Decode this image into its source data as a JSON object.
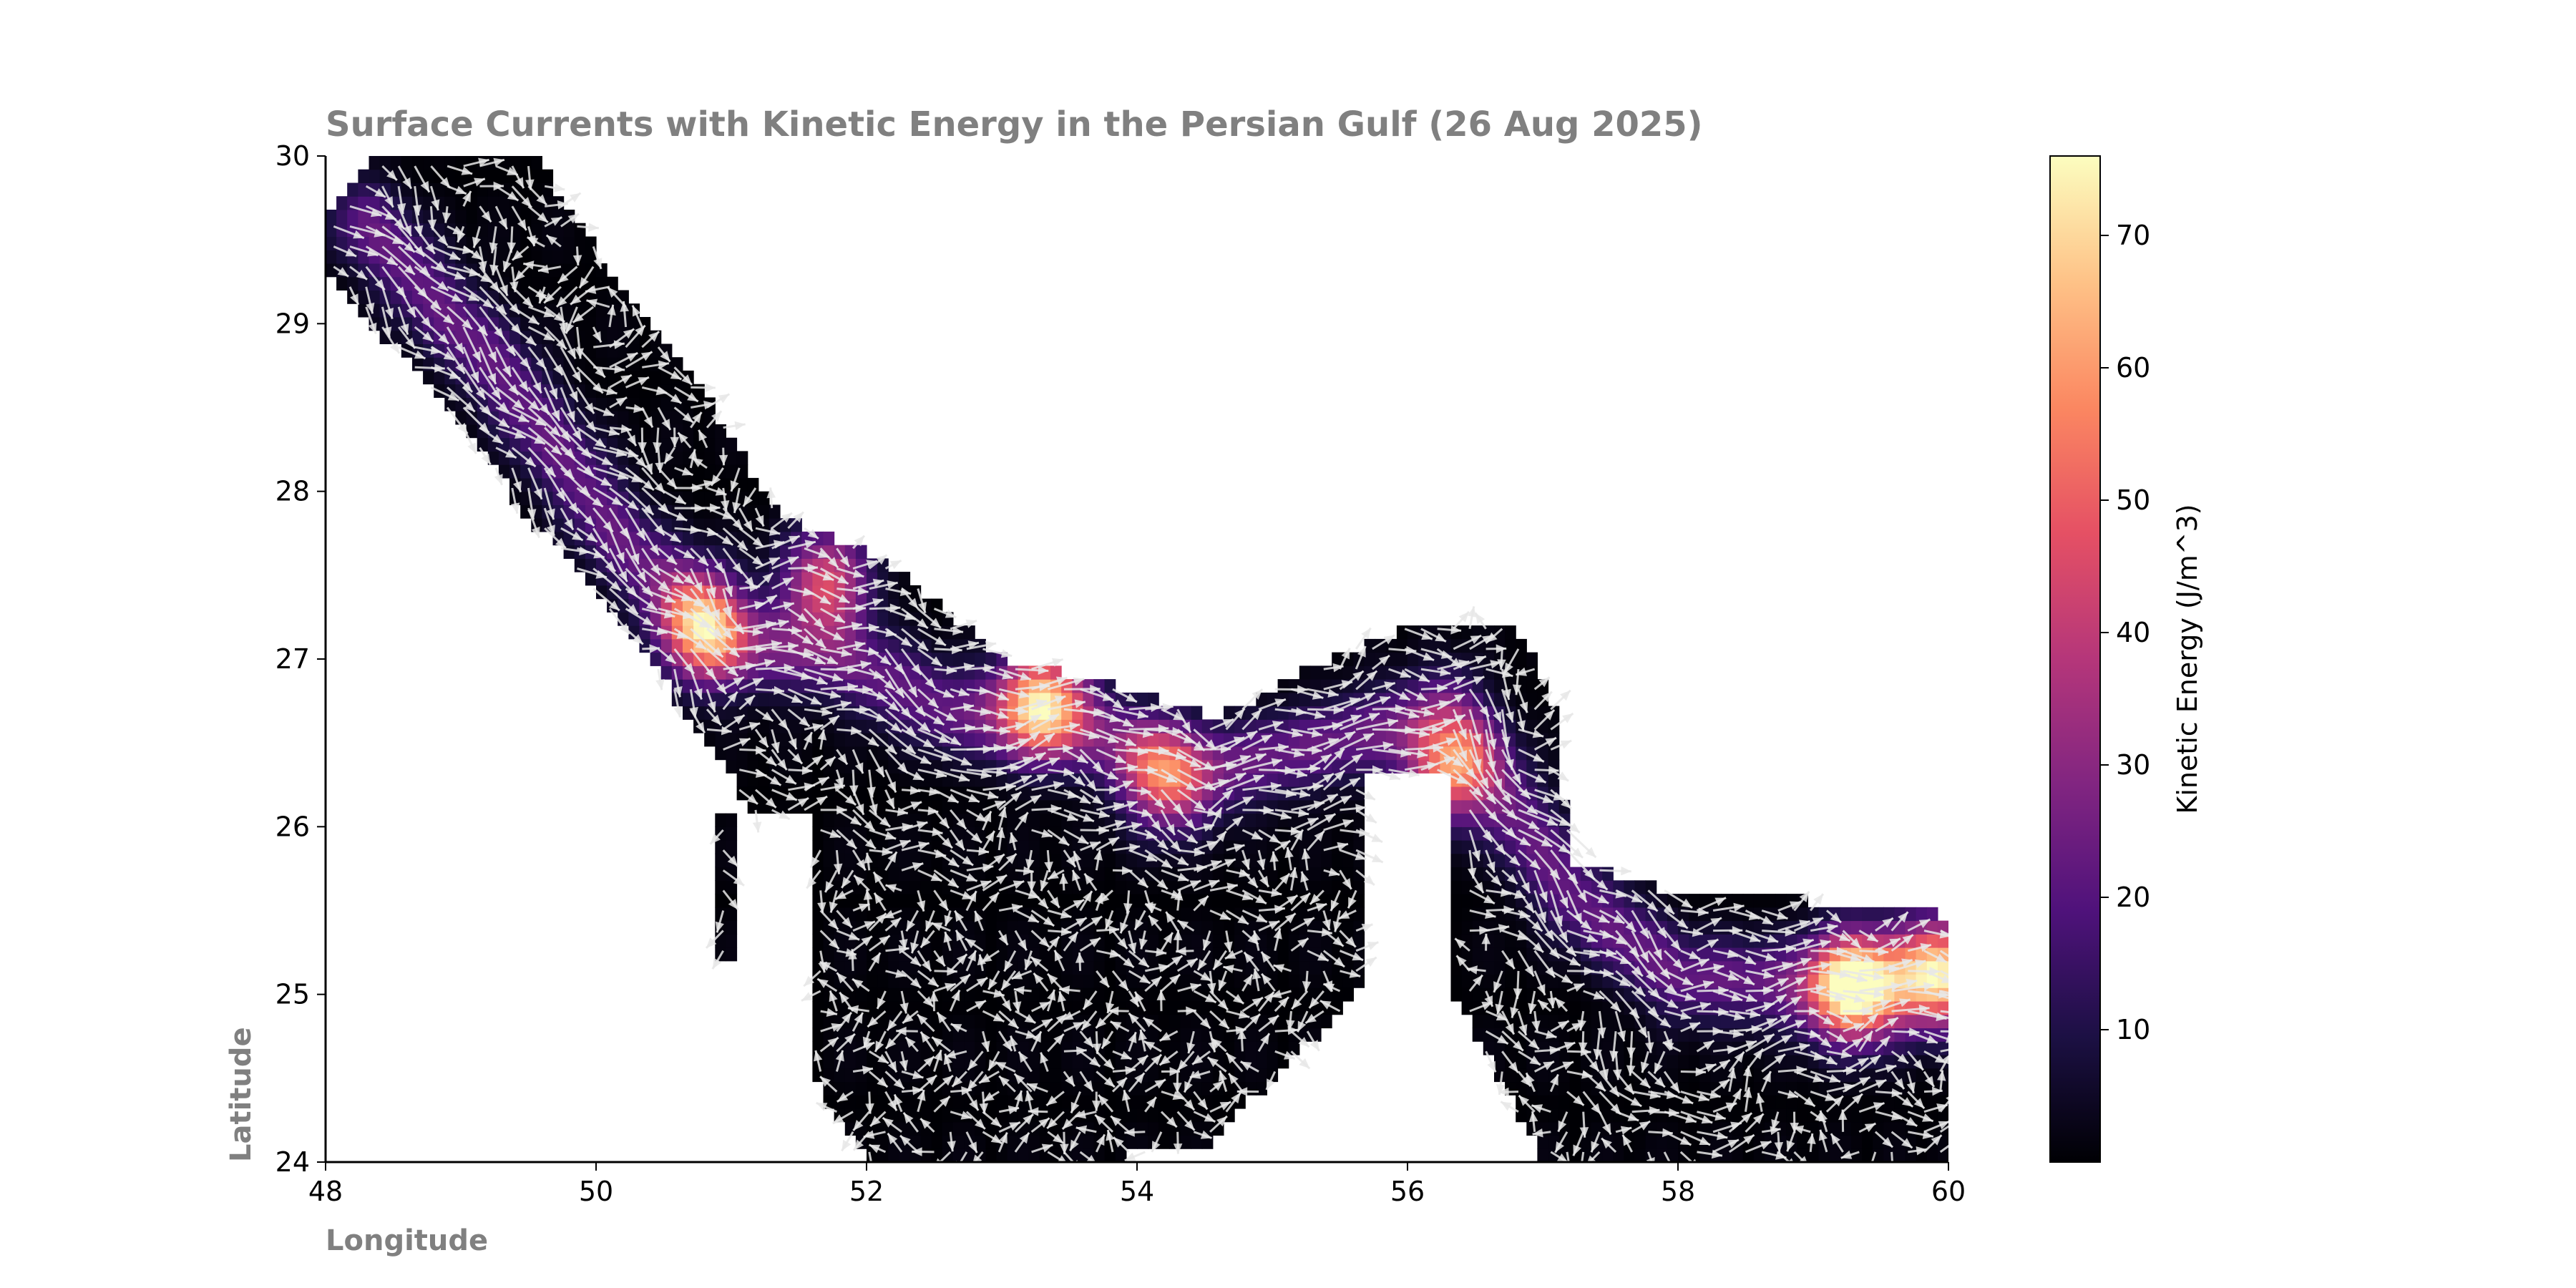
{
  "chart_data": {
    "type": "heatmap",
    "title": "Surface Currents with Kinetic Energy in the Persian Gulf (26 Aug 2025)",
    "xlabel": "Longitude",
    "ylabel": "Latitude",
    "xlim": [
      48,
      60
    ],
    "ylim": [
      24,
      30
    ],
    "xticks": [
      48,
      50,
      52,
      54,
      56,
      58,
      60
    ],
    "yticks": [
      24,
      25,
      26,
      27,
      28,
      29,
      30
    ],
    "overlay": "quiver",
    "arrow_color": "#e8e8e8",
    "colormap": "magma",
    "colormap_stops": [
      "#000004",
      "#1c1044",
      "#4f127b",
      "#812581",
      "#b5367a",
      "#e55064",
      "#fb8761",
      "#fec287",
      "#fcfdbf"
    ],
    "colorbar": {
      "label": "Kinetic Energy (J/m^3)",
      "range": [
        0,
        76
      ],
      "ticks": [
        10,
        20,
        30,
        40,
        50,
        60,
        70
      ]
    },
    "current_core_path": [
      [
        48.3,
        29.6
      ],
      [
        49.3,
        28.7
      ],
      [
        50.2,
        27.7
      ],
      [
        50.9,
        27.1
      ],
      [
        51.8,
        27.0
      ],
      [
        52.6,
        26.7
      ],
      [
        53.6,
        26.6
      ],
      [
        54.4,
        26.3
      ],
      [
        55.4,
        26.5
      ],
      [
        56.3,
        26.7
      ],
      [
        56.7,
        26.2
      ],
      [
        57.2,
        25.6
      ],
      [
        58.0,
        25.1
      ],
      [
        59.0,
        25.05
      ],
      [
        60.0,
        25.05
      ]
    ],
    "eddy_centers": [
      [
        49.9,
        28.9
      ],
      [
        52.6,
        26.5
      ],
      [
        56.8,
        26.6
      ],
      [
        58.0,
        24.6
      ]
    ],
    "high_energy_zones": [
      {
        "lon": 50.8,
        "lat": 27.2,
        "ke": 55
      },
      {
        "lon": 51.7,
        "lat": 27.45,
        "ke": 45
      },
      {
        "lon": 53.3,
        "lat": 26.75,
        "ke": 58
      },
      {
        "lon": 54.2,
        "lat": 26.3,
        "ke": 40
      },
      {
        "lon": 56.3,
        "lat": 26.35,
        "ke": 50
      },
      {
        "lon": 59.3,
        "lat": 25.05,
        "ke": 72
      },
      {
        "lon": 59.9,
        "lat": 25.15,
        "ke": 55
      }
    ]
  }
}
